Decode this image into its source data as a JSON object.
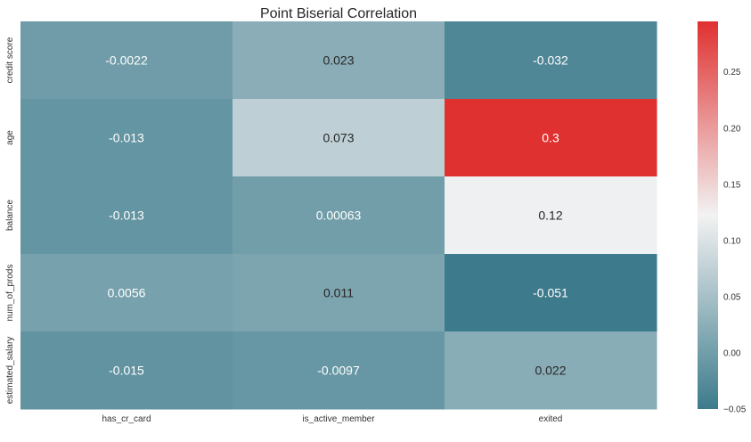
{
  "chart_data": {
    "type": "heatmap",
    "title": "Point Biserial Correlation",
    "xlabel": "",
    "ylabel": "",
    "rows": [
      "credit score",
      "age",
      "balance",
      "num_of_prods",
      "estimated_salary"
    ],
    "columns": [
      "has_cr_card",
      "is_active_member",
      "exited"
    ],
    "values": [
      [
        -0.0022,
        0.023,
        -0.032
      ],
      [
        -0.013,
        0.073,
        0.3
      ],
      [
        -0.013,
        0.00063,
        0.12
      ],
      [
        0.0056,
        0.011,
        -0.051
      ],
      [
        -0.015,
        -0.0097,
        0.022
      ]
    ],
    "labels": [
      [
        "-0.0022",
        "0.023",
        "-0.032"
      ],
      [
        "-0.013",
        "0.073",
        "0.3"
      ],
      [
        "-0.013",
        "0.00063",
        "0.12"
      ],
      [
        "0.0056",
        "0.011",
        "-0.051"
      ],
      [
        "-0.015",
        "-0.0097",
        "0.022"
      ]
    ],
    "colorbar": {
      "vmin": -0.05,
      "vmax": 0.295,
      "ticks": [
        -0.05,
        0.0,
        0.05,
        0.1,
        0.15,
        0.2,
        0.25
      ],
      "tick_labels": [
        "−0.05",
        "0.00",
        "0.05",
        "0.10",
        "0.15",
        "0.20",
        "0.25"
      ]
    },
    "colors": {
      "low": "#3d7b8c",
      "mid": "#f2f2f2",
      "high": "#e03131",
      "text_dark": "#262626",
      "text_light": "#ffffff"
    }
  }
}
